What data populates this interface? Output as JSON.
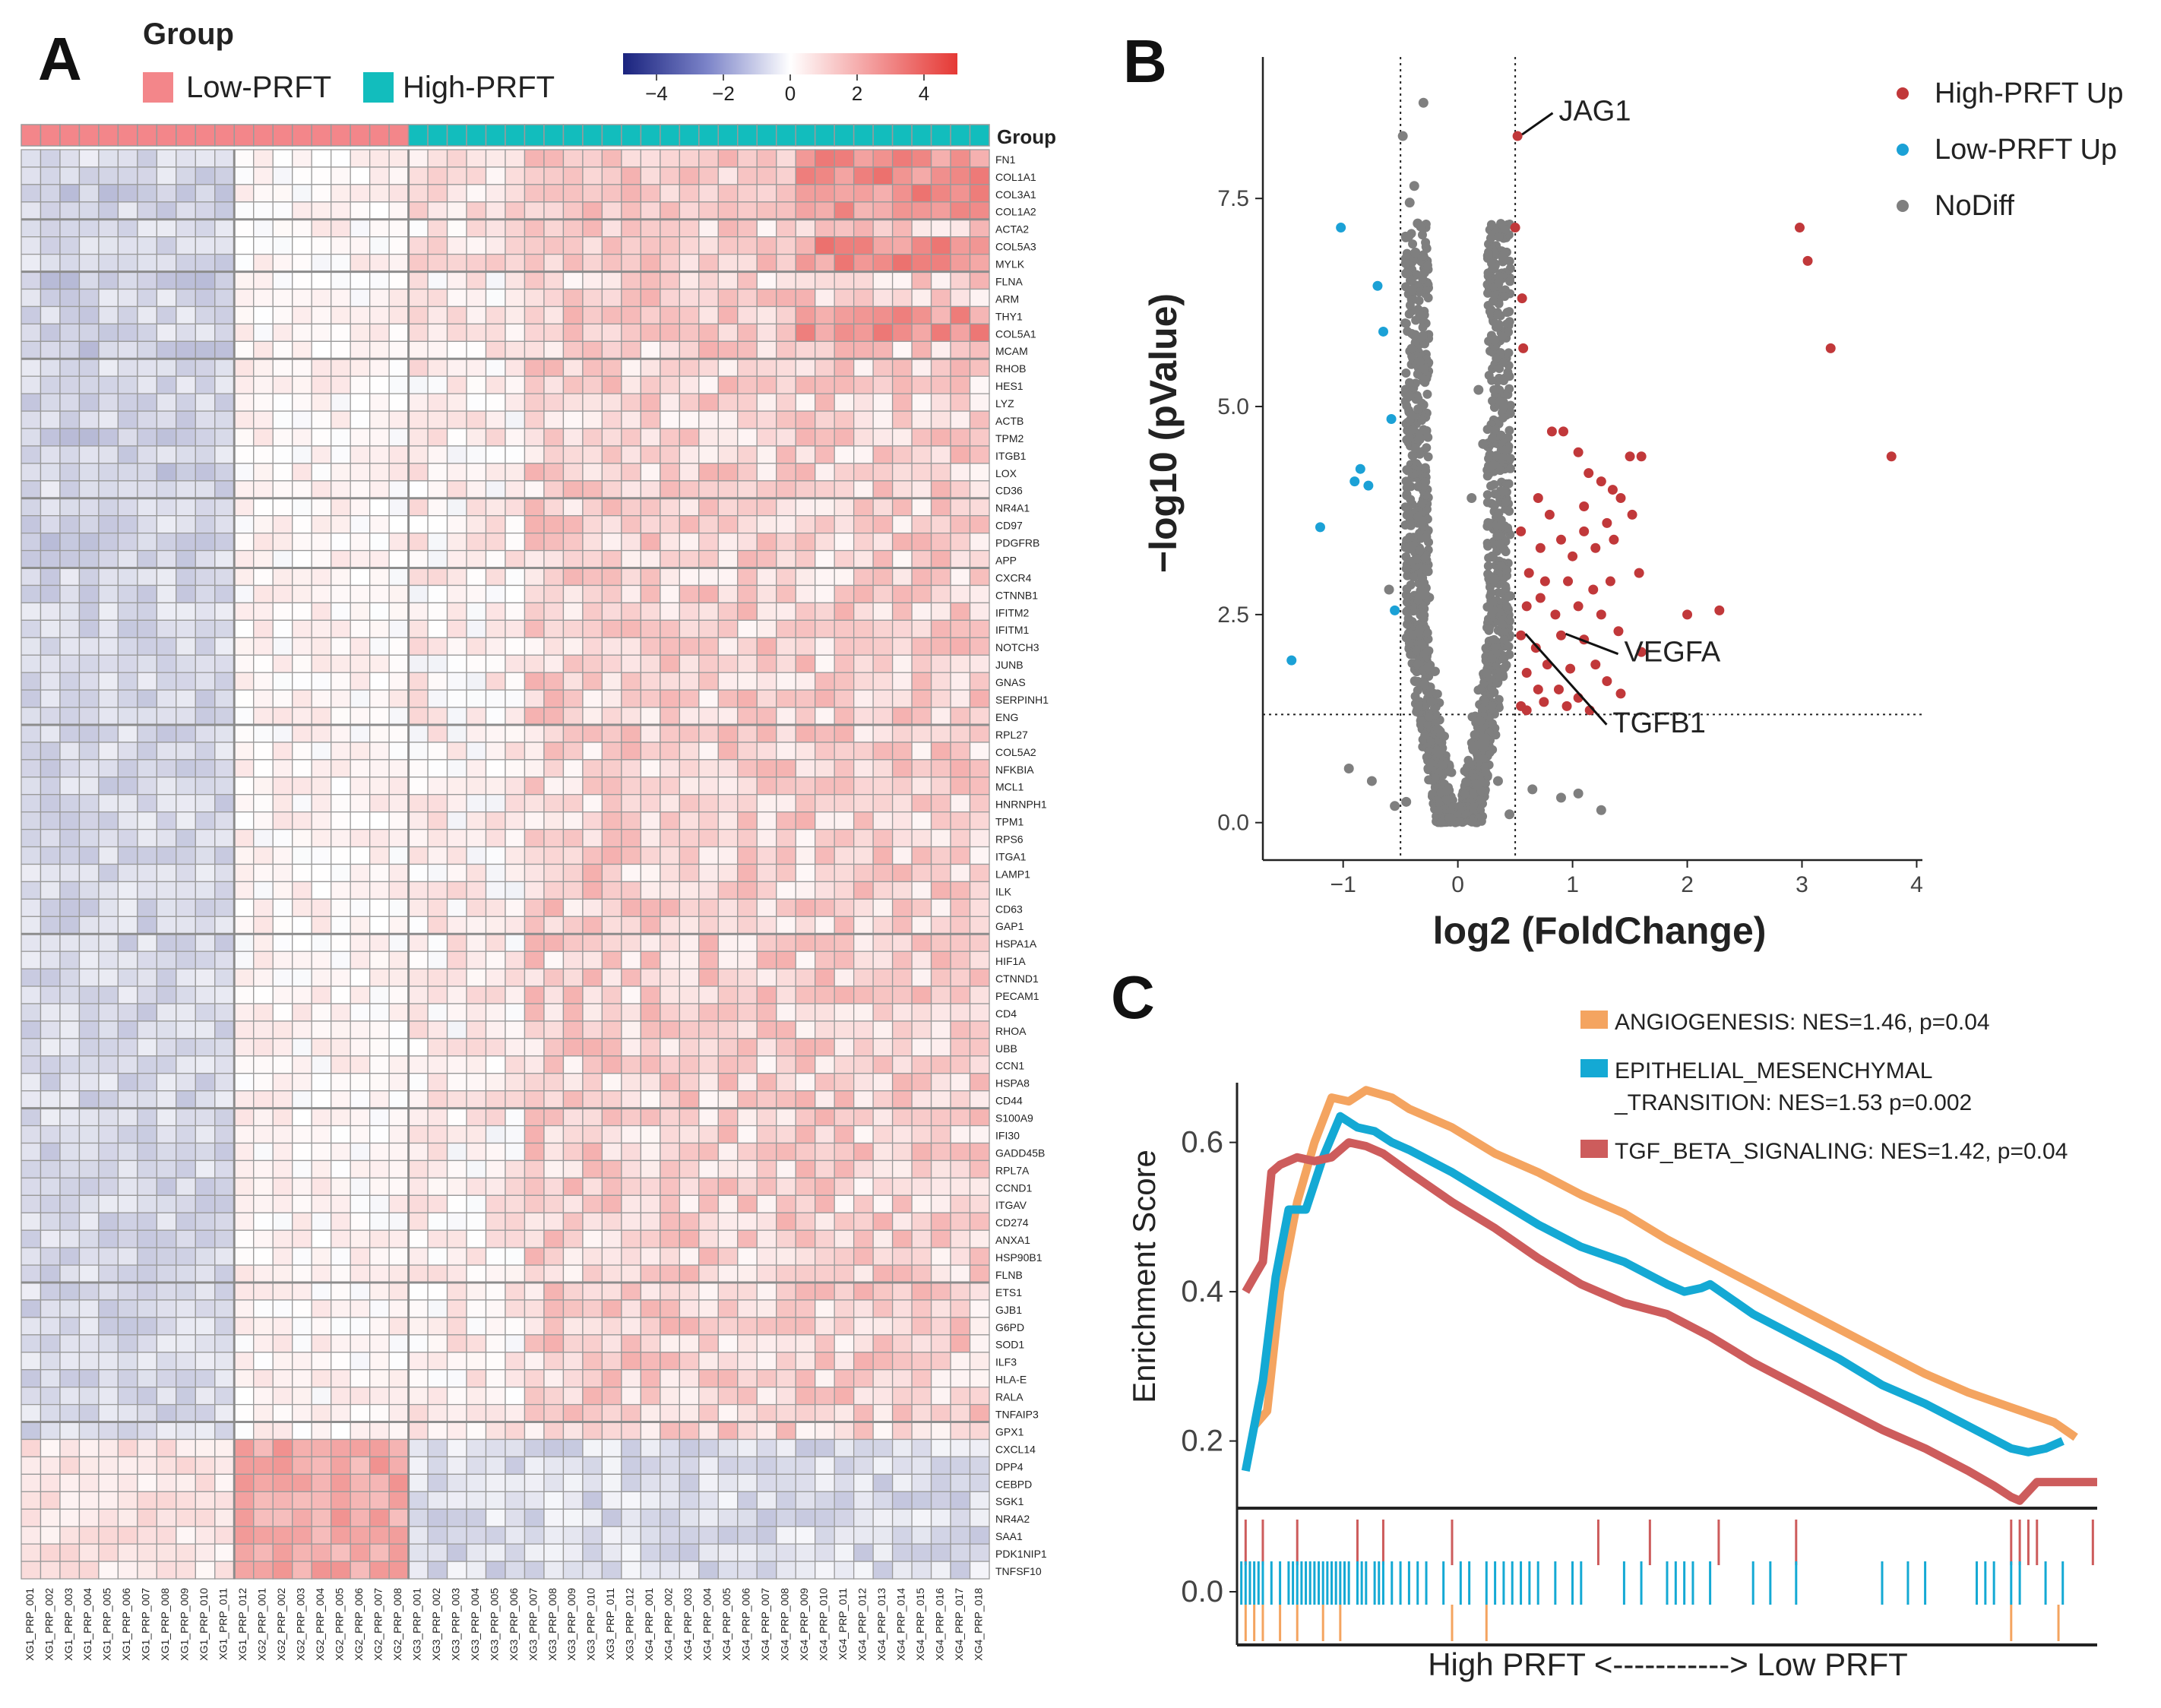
{
  "colors": {
    "low_prft": "#F3868A",
    "high_prft": "#12BDBD",
    "scale_low": "#1A237E",
    "scale_mid": "#FFFFFF",
    "scale_high": "#E53935",
    "volcano_up": "#C1383A",
    "volcano_lowup": "#1BA1D6",
    "volcano_nodiff": "#7F7F7F",
    "angio": "#F4A460",
    "emt": "#14A9D4",
    "tgf": "#CD5C5C",
    "grid_line": "#8C8C8C"
  },
  "chart_data": [
    {
      "type": "heatmap",
      "panel_label": "A",
      "legend": {
        "title": "Group",
        "entries": [
          {
            "label": "Low-PRFT",
            "color_key": "low_prft"
          },
          {
            "label": "High-PRFT",
            "color_key": "high_prft"
          }
        ]
      },
      "color_scale": {
        "min": -5,
        "max": 5,
        "ticks": [
          "−4",
          "−2",
          "0",
          "2",
          "4"
        ]
      },
      "annotation_label": "Group",
      "samples_low": [
        "XG1_PRP_001",
        "XG1_PRP_002",
        "XG1_PRP_003",
        "XG1_PRP_004",
        "XG1_PRP_005",
        "XG1_PRP_006",
        "XG1_PRP_007",
        "XG1_PRP_008",
        "XG1_PRP_009",
        "XG1_PRP_010",
        "XG1_PRP_011",
        "XG1_PRP_012",
        "XG2_PRP_001",
        "XG2_PRP_002",
        "XG2_PRP_003",
        "XG2_PRP_004",
        "XG2_PRP_005",
        "XG2_PRP_006",
        "XG2_PRP_007",
        "XG2_PRP_008"
      ],
      "samples_high": [
        "XG3_PRP_001",
        "XG3_PRP_002",
        "XG3_PRP_003",
        "XG3_PRP_004",
        "XG3_PRP_005",
        "XG3_PRP_006",
        "XG3_PRP_007",
        "XG3_PRP_008",
        "XG3_PRP_009",
        "XG3_PRP_010",
        "XG3_PRP_011",
        "XG3_PRP_012",
        "XG4_PRP_001",
        "XG4_PRP_002",
        "XG4_PRP_003",
        "XG4_PRP_004",
        "XG4_PRP_005",
        "XG4_PRP_006",
        "XG4_PRP_007",
        "XG4_PRP_008",
        "XG4_PRP_009",
        "XG4_PRP_010",
        "XG4_PRP_011",
        "XG4_PRP_012",
        "XG4_PRP_013",
        "XG4_PRP_014",
        "XG4_PRP_015",
        "XG4_PRP_016",
        "XG4_PRP_017",
        "XG4_PRP_018"
      ],
      "genes": [
        "FN1",
        "COL1A1",
        "COL3A1",
        "COL1A2",
        "ACTA2",
        "COL5A3",
        "MYLK",
        "FLNA",
        "ARM",
        "THY1",
        "COL5A1",
        "MCAM",
        "RHOB",
        "HES1",
        "LYZ",
        "ACTB",
        "TPM2",
        "ITGB1",
        "LOX",
        "CD36",
        "NR4A1",
        "CD97",
        "PDGFRB",
        "APP",
        "CXCR4",
        "CTNNB1",
        "IFITM2",
        "IFITM1",
        "NOTCH3",
        "JUNB",
        "GNAS",
        "SERPINH1",
        "ENG",
        "RPL27",
        "COL5A2",
        "NFKBIA",
        "MCL1",
        "HNRNPH1",
        "TPM1",
        "RPS6",
        "ITGA1",
        "LAMP1",
        "ILK",
        "CD63",
        "GAP1",
        "HSPA1A",
        "HIF1A",
        "CTNND1",
        "PECAM1",
        "CD4",
        "RHOA",
        "UBB",
        "CCN1",
        "HSPA8",
        "CD44",
        "S100A9",
        "IFI30",
        "GADD45B",
        "RPL7A",
        "CCND1",
        "ITGAV",
        "CD274",
        "ANXA1",
        "HSP90B1",
        "FLNB",
        "ETS1",
        "GJB1",
        "G6PD",
        "SOD1",
        "ILF3",
        "HLA-E",
        "RALA",
        "TNFAIP3",
        "GPX1",
        "CXCL14",
        "DPP4",
        "CEBPD",
        "SGK1",
        "NR4A2",
        "SAA1",
        "PDK1NIP1",
        "TNFSF10"
      ],
      "row_pattern_low": [
        0,
        0,
        -1,
        0,
        0,
        0,
        0,
        -1,
        0,
        0,
        0,
        -1,
        0,
        0,
        0,
        0,
        -1,
        0,
        -1,
        0,
        0,
        0,
        -1,
        0,
        0,
        0,
        0,
        0,
        0,
        0,
        0,
        0,
        0,
        0,
        0,
        0,
        0,
        0,
        0,
        0,
        0,
        0,
        0,
        0,
        0,
        0,
        0,
        0,
        0,
        0,
        0,
        0,
        0,
        0,
        0,
        0,
        0,
        0,
        0,
        0,
        0,
        0,
        0,
        0,
        0,
        0,
        0,
        0,
        0,
        0,
        0,
        0,
        0,
        0,
        1,
        1,
        1,
        1,
        1,
        1,
        1,
        1
      ],
      "row_pattern_high": [
        2,
        2,
        2,
        2,
        1,
        2,
        2,
        1,
        1,
        2,
        2,
        1,
        1,
        1,
        1,
        1,
        1,
        1,
        1,
        1,
        1,
        1,
        1,
        1,
        1,
        1,
        1,
        1,
        1,
        1,
        1,
        1,
        1,
        1,
        1,
        1,
        1,
        1,
        1,
        1,
        1,
        1,
        1,
        1,
        1,
        1,
        1,
        1,
        1,
        1,
        1,
        1,
        1,
        1,
        1,
        1,
        1,
        1,
        1,
        1,
        1,
        1,
        1,
        1,
        1,
        1,
        1,
        1,
        1,
        1,
        1,
        1,
        1,
        1,
        -1,
        -1,
        -1,
        -1,
        -1,
        -1,
        -1,
        -1
      ]
    },
    {
      "type": "scatter",
      "panel_label": "B",
      "xlabel": "log2 (FoldChange)",
      "ylabel": "−log10 (pValue)",
      "xlim": [
        -1.7,
        4.05
      ],
      "ylim": [
        -0.45,
        9.2
      ],
      "xticks": [
        -1,
        0,
        1,
        2,
        3,
        4
      ],
      "xtick_labels": [
        "−1",
        "0",
        "1",
        "2",
        "3",
        "4"
      ],
      "yticks": [
        0,
        2.5,
        5,
        7.5
      ],
      "ytick_labels": [
        "0.0",
        "2.5",
        "5.0",
        "7.5"
      ],
      "vlines": [
        -0.5,
        0.5
      ],
      "hline": 1.3,
      "legend": [
        {
          "label": "High-PRFT Up",
          "color_key": "volcano_up"
        },
        {
          "label": "Low-PRFT Up",
          "color_key": "volcano_lowup"
        },
        {
          "label": "NoDiff",
          "color_key": "volcano_nodiff"
        }
      ],
      "annotations": [
        {
          "label": "JAG1",
          "x": 0.52,
          "y": 8.25,
          "tx": 0.88,
          "ty": 8.6
        },
        {
          "label": "VEGFA",
          "x": 0.9,
          "y": 2.25,
          "tx": 1.45,
          "ty": 2.1
        },
        {
          "label": "TGFB1",
          "x": 0.55,
          "y": 2.25,
          "tx": 1.35,
          "ty": 1.25
        }
      ],
      "series": [
        {
          "name": "High-PRFT Up",
          "color_key": "volcano_up",
          "points": [
            [
              0.52,
              8.25
            ],
            [
              0.5,
              7.15
            ],
            [
              0.56,
              6.3
            ],
            [
              0.57,
              5.7
            ],
            [
              2.98,
              7.15
            ],
            [
              3.05,
              6.75
            ],
            [
              3.25,
              5.7
            ],
            [
              3.78,
              4.4
            ],
            [
              0.82,
              4.7
            ],
            [
              0.92,
              4.7
            ],
            [
              1.05,
              4.45
            ],
            [
              1.14,
              4.2
            ],
            [
              1.5,
              4.4
            ],
            [
              1.6,
              4.4
            ],
            [
              1.25,
              4.1
            ],
            [
              1.35,
              4.0
            ],
            [
              0.7,
              3.9
            ],
            [
              0.8,
              3.7
            ],
            [
              1.1,
              3.8
            ],
            [
              1.3,
              3.6
            ],
            [
              1.42,
              3.9
            ],
            [
              1.52,
              3.7
            ],
            [
              0.55,
              3.5
            ],
            [
              0.72,
              3.3
            ],
            [
              0.9,
              3.4
            ],
            [
              1.0,
              3.2
            ],
            [
              1.1,
              3.5
            ],
            [
              1.2,
              3.3
            ],
            [
              1.36,
              3.4
            ],
            [
              1.58,
              3.0
            ],
            [
              0.62,
              3.0
            ],
            [
              0.76,
              2.9
            ],
            [
              0.96,
              2.9
            ],
            [
              1.18,
              2.8
            ],
            [
              1.33,
              2.9
            ],
            [
              0.6,
              2.6
            ],
            [
              0.72,
              2.7
            ],
            [
              0.85,
              2.5
            ],
            [
              1.05,
              2.6
            ],
            [
              1.25,
              2.5
            ],
            [
              0.9,
              2.25
            ],
            [
              1.1,
              2.2
            ],
            [
              1.4,
              2.3
            ],
            [
              1.6,
              2.05
            ],
            [
              2.0,
              2.5
            ],
            [
              2.28,
              2.55
            ],
            [
              0.55,
              2.25
            ],
            [
              0.68,
              2.1
            ],
            [
              0.78,
              1.9
            ],
            [
              0.98,
              1.85
            ],
            [
              1.2,
              1.9
            ],
            [
              1.3,
              1.7
            ],
            [
              0.6,
              1.8
            ],
            [
              0.7,
              1.6
            ],
            [
              0.88,
              1.6
            ],
            [
              1.05,
              1.5
            ],
            [
              1.15,
              1.35
            ],
            [
              0.55,
              1.4
            ],
            [
              0.75,
              1.45
            ],
            [
              0.95,
              1.4
            ],
            [
              1.42,
              1.55
            ],
            [
              0.6,
              1.35
            ]
          ]
        },
        {
          "name": "Low-PRFT Up",
          "color_key": "volcano_lowup",
          "points": [
            [
              -1.02,
              7.15
            ],
            [
              -0.7,
              6.45
            ],
            [
              -0.65,
              5.9
            ],
            [
              -0.58,
              4.85
            ],
            [
              -0.85,
              4.25
            ],
            [
              -0.9,
              4.1
            ],
            [
              -0.78,
              4.05
            ],
            [
              -1.2,
              3.55
            ],
            [
              -0.55,
              2.55
            ],
            [
              -1.45,
              1.95
            ]
          ]
        },
        {
          "name": "NoDiff",
          "color_key": "volcano_nodiff",
          "points": [
            [
              -0.3,
              8.65
            ],
            [
              -0.48,
              8.25
            ],
            [
              -0.42,
              7.45
            ],
            [
              -0.38,
              7.65
            ],
            [
              -0.35,
              7.2
            ],
            [
              -0.45,
              6.6
            ],
            [
              -0.37,
              6.85
            ],
            [
              -0.4,
              6.4
            ],
            [
              -0.33,
              6.1
            ],
            [
              0.32,
              5.8
            ],
            [
              0.18,
              5.2
            ],
            [
              0.22,
              4.55
            ],
            [
              0.12,
              3.9
            ],
            [
              0.3,
              3.2
            ],
            [
              -0.6,
              2.8
            ],
            [
              -0.55,
              0.2
            ],
            [
              -0.75,
              0.5
            ],
            [
              -0.45,
              0.25
            ],
            [
              0.65,
              0.4
            ],
            [
              0.9,
              0.3
            ],
            [
              1.05,
              0.35
            ],
            [
              1.25,
              0.15
            ],
            [
              -0.95,
              0.65
            ],
            [
              0.45,
              0.1
            ],
            [
              0.35,
              0.5
            ]
          ]
        }
      ]
    },
    {
      "type": "line",
      "panel_label": "C",
      "ylabel": "Enrichment Score",
      "xlabel": "High PRFT <-----------> Low PRFT",
      "xlim": [
        0,
        1
      ],
      "ylim": [
        0.11,
        0.68
      ],
      "yticks": [
        0.2,
        0.4,
        0.6
      ],
      "ytick_labels": [
        "0.2",
        "0.4",
        "0.6"
      ],
      "rug_tick_label": "0.0",
      "legend": [
        {
          "lines": [
            "ANGIOGENESIS:   NES=1.46, p=0.04"
          ],
          "color_key": "angio"
        },
        {
          "lines": [
            "EPITHELIAL_MESENCHYMAL",
            "_TRANSITION: NES=1.53 p=0.002"
          ],
          "color_key": "emt"
        },
        {
          "lines": [
            "TGF_BETA_SIGNALING: NES=1.42, p=0.04"
          ],
          "color_key": "tgf"
        }
      ],
      "series": [
        {
          "name": "ANGIOGENESIS",
          "color_key": "angio",
          "x": [
            0.02,
            0.035,
            0.05,
            0.07,
            0.09,
            0.11,
            0.13,
            0.15,
            0.18,
            0.2,
            0.25,
            0.3,
            0.35,
            0.4,
            0.45,
            0.5,
            0.55,
            0.6,
            0.65,
            0.7,
            0.75,
            0.8,
            0.85,
            0.9,
            0.95,
            0.975
          ],
          "y": [
            0.22,
            0.24,
            0.4,
            0.52,
            0.6,
            0.66,
            0.655,
            0.67,
            0.66,
            0.645,
            0.62,
            0.585,
            0.56,
            0.53,
            0.505,
            0.47,
            0.44,
            0.41,
            0.38,
            0.35,
            0.32,
            0.29,
            0.265,
            0.245,
            0.225,
            0.205
          ]
        },
        {
          "name": "EPITHELIAL_MESENCHYMAL_TRANSITION",
          "color_key": "emt",
          "x": [
            0.01,
            0.03,
            0.045,
            0.06,
            0.08,
            0.1,
            0.12,
            0.14,
            0.16,
            0.18,
            0.2,
            0.25,
            0.3,
            0.35,
            0.4,
            0.45,
            0.5,
            0.52,
            0.54,
            0.55,
            0.6,
            0.65,
            0.7,
            0.75,
            0.8,
            0.85,
            0.9,
            0.92,
            0.94,
            0.96
          ],
          "y": [
            0.16,
            0.28,
            0.42,
            0.51,
            0.51,
            0.58,
            0.635,
            0.62,
            0.615,
            0.6,
            0.59,
            0.56,
            0.525,
            0.49,
            0.46,
            0.44,
            0.41,
            0.4,
            0.405,
            0.41,
            0.37,
            0.34,
            0.31,
            0.275,
            0.25,
            0.22,
            0.19,
            0.185,
            0.19,
            0.2
          ]
        },
        {
          "name": "TGF_BETA_SIGNALING",
          "color_key": "tgf",
          "x": [
            0.01,
            0.02,
            0.03,
            0.04,
            0.05,
            0.07,
            0.09,
            0.11,
            0.13,
            0.15,
            0.17,
            0.2,
            0.25,
            0.3,
            0.35,
            0.4,
            0.45,
            0.5,
            0.55,
            0.6,
            0.65,
            0.7,
            0.75,
            0.8,
            0.85,
            0.88,
            0.9,
            0.91,
            0.93,
            0.96,
            1.0
          ],
          "y": [
            0.4,
            0.42,
            0.44,
            0.56,
            0.57,
            0.58,
            0.575,
            0.58,
            0.6,
            0.595,
            0.585,
            0.56,
            0.52,
            0.485,
            0.445,
            0.41,
            0.385,
            0.37,
            0.34,
            0.305,
            0.275,
            0.245,
            0.215,
            0.19,
            0.16,
            0.14,
            0.125,
            0.12,
            0.145,
            0.145,
            0.145
          ]
        }
      ],
      "rug": {
        "tgf": [
          0.01,
          0.03,
          0.07,
          0.14,
          0.17,
          0.25,
          0.42,
          0.48,
          0.56,
          0.65,
          0.9,
          0.91,
          0.92,
          0.93,
          0.995
        ],
        "emt": [
          0.005,
          0.01,
          0.015,
          0.02,
          0.025,
          0.03,
          0.04,
          0.05,
          0.06,
          0.065,
          0.07,
          0.075,
          0.08,
          0.085,
          0.09,
          0.095,
          0.1,
          0.105,
          0.11,
          0.115,
          0.12,
          0.125,
          0.13,
          0.14,
          0.145,
          0.15,
          0.16,
          0.165,
          0.17,
          0.18,
          0.19,
          0.2,
          0.21,
          0.22,
          0.24,
          0.26,
          0.27,
          0.29,
          0.3,
          0.31,
          0.32,
          0.33,
          0.34,
          0.35,
          0.37,
          0.39,
          0.4,
          0.45,
          0.47,
          0.5,
          0.51,
          0.52,
          0.53,
          0.55,
          0.6,
          0.62,
          0.65,
          0.75,
          0.78,
          0.8,
          0.86,
          0.87,
          0.88,
          0.9,
          0.91,
          0.94,
          0.96
        ],
        "angio": [
          0.01,
          0.02,
          0.03,
          0.05,
          0.07,
          0.1,
          0.12,
          0.25,
          0.29,
          0.9,
          0.955
        ]
      }
    }
  ]
}
